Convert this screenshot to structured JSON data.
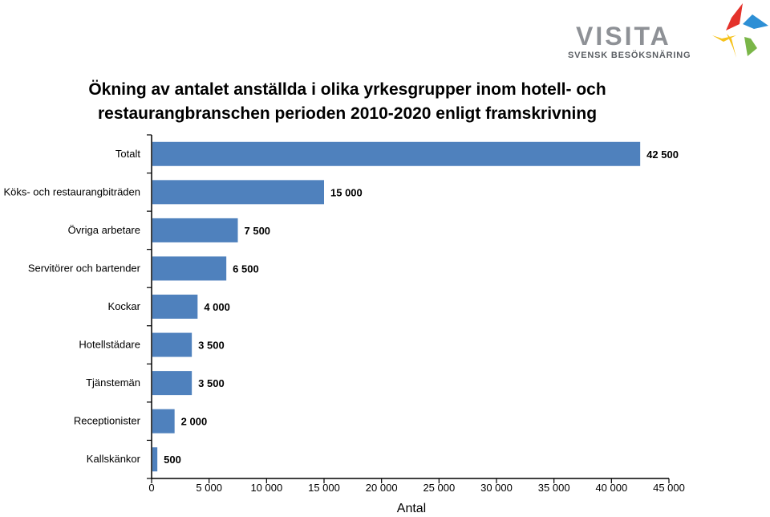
{
  "logo": {
    "brand": "VISITA",
    "tagline": "SVENSK BESÖKSNÄRING",
    "colors": [
      "#e4322b",
      "#2d8fd5",
      "#f6c21c",
      "#7ab648"
    ]
  },
  "chart_data": {
    "type": "bar",
    "orientation": "horizontal",
    "title_lines": [
      "Ökning av antalet anställda i olika yrkesgrupper inom hotell- och",
      "restaurangbranschen perioden 2010-2020 enligt framskrivning"
    ],
    "categories": [
      "Totalt",
      "Köks- och restaurangbiträden",
      "Övriga arbetare",
      "Servitörer och bartender",
      "Kockar",
      "Hotellstädare",
      "Tjänstemän",
      "Receptionister",
      "Kallskänkor"
    ],
    "values": [
      42500,
      15000,
      7500,
      6500,
      4000,
      3500,
      3500,
      2000,
      500
    ],
    "data_labels": [
      "42 500",
      "15 000",
      "7 500",
      "6 500",
      "4 000",
      "3 500",
      "3 500",
      "2 000",
      "500"
    ],
    "xticks": [
      0,
      5000,
      10000,
      15000,
      20000,
      25000,
      30000,
      35000,
      40000,
      45000
    ],
    "xtick_labels": [
      "0",
      "5 000",
      "10 000",
      "15 000",
      "20 000",
      "25 000",
      "30 000",
      "35 000",
      "40 000",
      "45 000"
    ],
    "xlim": [
      0,
      45000
    ],
    "xlabel": "Antal",
    "ylabel": "",
    "grid": false,
    "legend": "none",
    "bar_color": "#4f81bd"
  }
}
